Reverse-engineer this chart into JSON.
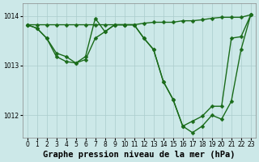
{
  "title": "Graphe pression niveau de la mer (hPa)",
  "bg_color": "#cce8e8",
  "plot_bg_color": "#cce8e8",
  "grid_color": "#aacccc",
  "line_color": "#1a6b1a",
  "ylim": [
    1011.55,
    1014.25
  ],
  "yticks": [
    1012,
    1013,
    1014
  ],
  "xlim": [
    -0.5,
    23.5
  ],
  "xticks": [
    0,
    1,
    2,
    3,
    4,
    5,
    6,
    7,
    8,
    9,
    10,
    11,
    12,
    13,
    14,
    15,
    16,
    17,
    18,
    19,
    20,
    21,
    22,
    23
  ],
  "lineA_x": [
    0,
    1,
    2,
    3,
    4,
    5,
    6,
    7,
    8,
    9,
    10,
    11,
    12,
    13,
    14,
    15,
    16,
    17,
    18,
    19,
    20,
    21,
    22,
    23
  ],
  "lineA_y": [
    1013.82,
    1013.82,
    1013.82,
    1013.82,
    1013.82,
    1013.82,
    1013.82,
    1013.82,
    1013.82,
    1013.82,
    1013.82,
    1013.82,
    1013.85,
    1013.87,
    1013.87,
    1013.87,
    1013.9,
    1013.9,
    1013.92,
    1013.95,
    1013.97,
    1013.97,
    1013.97,
    1014.02
  ],
  "lineB_x": [
    0,
    1,
    2,
    3,
    4,
    5,
    6,
    7,
    8,
    9,
    10,
    11,
    12,
    13,
    14,
    15,
    16,
    17,
    18,
    19,
    20,
    21,
    22,
    23
  ],
  "lineB_y": [
    1013.82,
    1013.75,
    1013.55,
    1013.25,
    1013.18,
    1013.05,
    1013.18,
    1013.95,
    1013.68,
    1013.82,
    1013.82,
    1013.82,
    1013.55,
    1013.32,
    1012.68,
    1012.32,
    1011.78,
    1011.88,
    1011.98,
    1012.18,
    1012.18,
    1013.55,
    1013.58,
    1014.02
  ],
  "lineC_x": [
    0,
    1,
    2,
    3,
    4,
    5,
    6,
    7,
    8,
    9,
    10,
    11,
    12,
    13,
    14,
    15,
    16,
    17,
    18,
    19,
    20,
    21,
    22,
    23
  ],
  "lineC_y": [
    1013.82,
    1013.75,
    1013.55,
    1013.18,
    1013.08,
    1013.05,
    1013.12,
    1013.55,
    1013.68,
    1013.82,
    1013.82,
    1013.82,
    1013.55,
    1013.32,
    1012.68,
    1012.32,
    1011.78,
    1011.65,
    1011.78,
    1012.0,
    1011.92,
    1012.28,
    1013.32,
    1014.02
  ],
  "marker": "D",
  "marker_size": 2.5,
  "linewidth": 1.0,
  "title_fontsize": 7.5,
  "tick_fontsize": 5.5
}
